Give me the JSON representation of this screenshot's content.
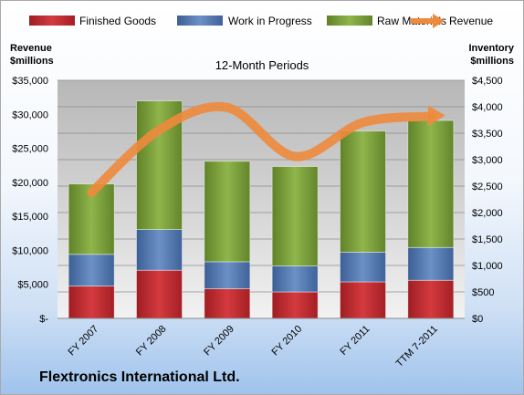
{
  "company_name": "Flextronics International Ltd.",
  "colors": {
    "finished_goods": "#c0282d",
    "work_in_progress": "#4f78b5",
    "raw_materials": "#7ea33a",
    "revenue": "#ee8a3c"
  },
  "chart_data": {
    "type": "bar",
    "subtype": "stacked-bar-with-line",
    "title": "12-Month Periods",
    "categories": [
      "FY 2007",
      "FY 2008",
      "FY 2009",
      "FY 2010",
      "FY 2011",
      "TTM 7-2011"
    ],
    "series": [
      {
        "name": "Finished Goods",
        "axis": "right",
        "values": [
          610,
          910,
          560,
          500,
          690,
          720
        ]
      },
      {
        "name": "Work in Progress",
        "axis": "right",
        "values": [
          600,
          770,
          510,
          490,
          560,
          620
        ]
      },
      {
        "name": "Raw Materials",
        "axis": "right",
        "values": [
          1330,
          2430,
          1900,
          1880,
          2290,
          2400
        ]
      },
      {
        "name": "Revenue",
        "type": "line",
        "axis": "left",
        "values": [
          18500,
          27700,
          31000,
          23800,
          28800,
          29700
        ]
      }
    ],
    "left_axis": {
      "label_line1": "Revenue",
      "label_line2": "$millions",
      "range": [
        0,
        35000
      ],
      "ticks": [
        "$-",
        "$5,000",
        "$10,000",
        "$15,000",
        "$20,000",
        "$25,000",
        "$30,000",
        "$35,000"
      ]
    },
    "right_axis": {
      "label_line1": "Inventory",
      "label_line2": "$millions",
      "range": [
        0,
        4500
      ],
      "ticks": [
        "$0",
        "$500",
        "$1,000",
        "$1,500",
        "$2,000",
        "$2,500",
        "$3,000",
        "$3,500",
        "$4,000",
        "$4,500"
      ]
    },
    "legend": [
      "Finished Goods",
      "Work in Progress",
      "Raw Materials",
      "Revenue"
    ],
    "legend_position": "top",
    "grid": true
  }
}
